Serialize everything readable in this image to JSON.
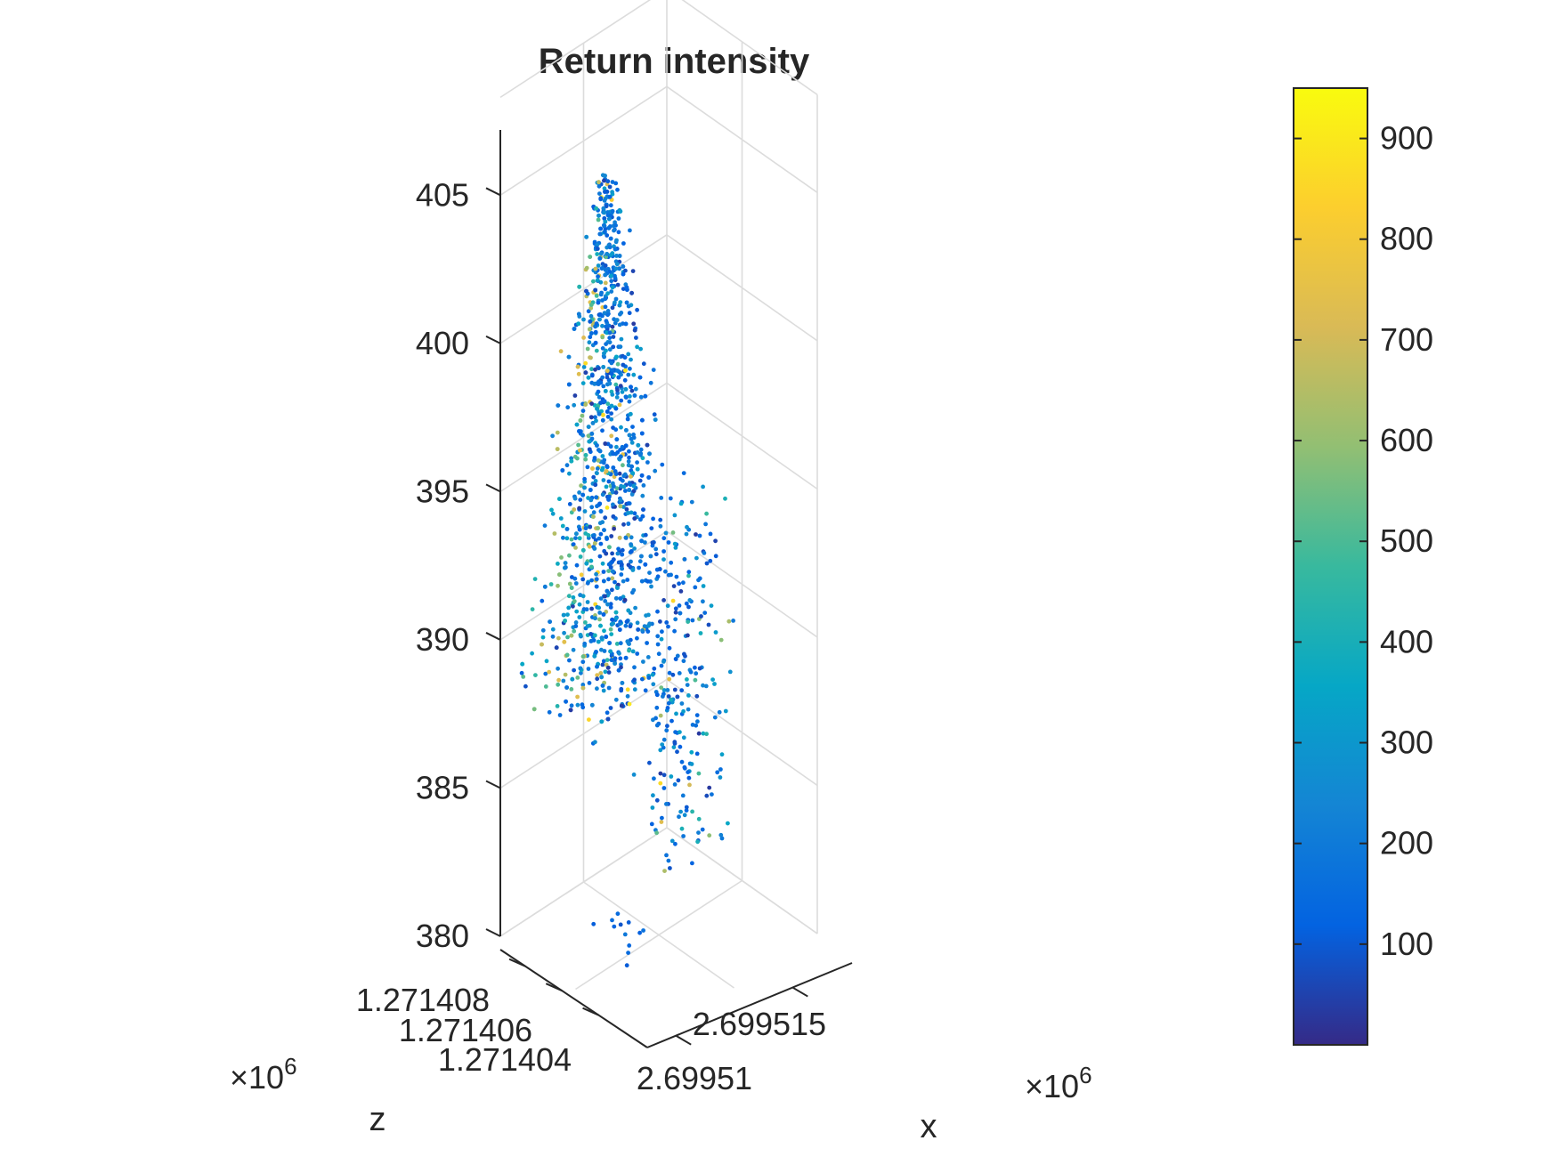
{
  "chart_data": {
    "type": "scatter",
    "title": "Return intensity",
    "z_axis": {
      "ticks": [
        {
          "value": 380,
          "label": "380"
        },
        {
          "value": 385,
          "label": "385"
        },
        {
          "value": 390,
          "label": "390"
        },
        {
          "value": 395,
          "label": "395"
        },
        {
          "value": 400,
          "label": "400"
        },
        {
          "value": 405,
          "label": "405"
        }
      ]
    },
    "y_axis": {
      "label": "z",
      "exponent_label": "×10",
      "exponent_power": "6",
      "ticks": [
        {
          "value": 1.271408,
          "label": "1.271408"
        },
        {
          "value": 1.271406,
          "label": "1.271406"
        },
        {
          "value": 1.271404,
          "label": "1.271404"
        }
      ]
    },
    "x_axis": {
      "label": "x",
      "exponent_label": "×10",
      "exponent_power": "6",
      "ticks": [
        {
          "value": 2.699515,
          "label": "2.699515"
        },
        {
          "value": 2.69951,
          "label": "2.69951"
        }
      ]
    },
    "colorbar": {
      "colormap": "parula",
      "range": [
        0,
        950
      ],
      "ticks": [
        {
          "value": 100,
          "label": "100"
        },
        {
          "value": 200,
          "label": "200"
        },
        {
          "value": 300,
          "label": "300"
        },
        {
          "value": 400,
          "label": "400"
        },
        {
          "value": 500,
          "label": "500"
        },
        {
          "value": 600,
          "label": "600"
        },
        {
          "value": 700,
          "label": "700"
        },
        {
          "value": 800,
          "label": "800"
        },
        {
          "value": 900,
          "label": "900"
        }
      ]
    },
    "z_range": [
      380,
      406
    ],
    "point_cloud_summary": {
      "approx_point_count": 1600,
      "z_min": 380.9,
      "z_max": 405.5,
      "intensity_range": [
        10,
        950
      ],
      "dominant_intensity_range": [
        50,
        400
      ]
    },
    "grid": true,
    "legend": "none",
    "colors": {
      "grid": "#dcdcdc",
      "axis": "#262626",
      "colormap_stops": [
        "#352a87",
        "#0363e1",
        "#1485d4",
        "#06a7c6",
        "#38b99e",
        "#92bf73",
        "#d9ba56",
        "#fcce2e",
        "#f9fb0e"
      ]
    }
  }
}
